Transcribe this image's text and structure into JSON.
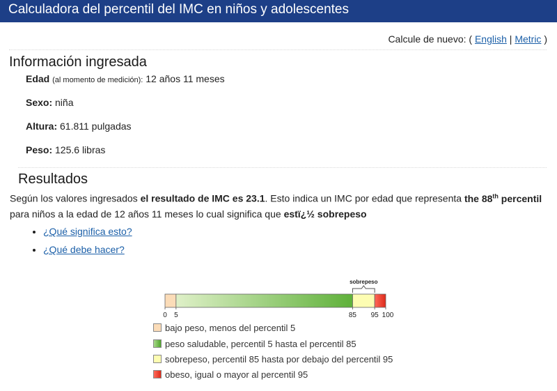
{
  "header": {
    "title": "Calculadora del percentil del IMC en niños y adolescentes"
  },
  "recalc": {
    "label": "Calcule de nuevo: (",
    "english": "English",
    "sep": "|",
    "metric": "Metric",
    "close": ")"
  },
  "info": {
    "heading": "Información ingresada",
    "age_label": "Edad",
    "age_note": "(al momento de medición):",
    "age_value": "12 años 11 meses",
    "sex_label": "Sexo:",
    "sex_value": "niña",
    "height_label": "Altura:",
    "height_value": "61.811 pulgadas",
    "weight_label": "Peso:",
    "weight_value": "125.6 libras"
  },
  "results": {
    "heading": "Resultados",
    "p1": "Según los valores ingresados ",
    "p1_bold": "el resultado de IMC es 23.1",
    "p2": ". Esto indica un IMC por edad que representa ",
    "p2_bold_a": "the 88",
    "p2_sup": "th",
    "p2_bold_b": " percentil",
    "p3": "para niños a la edad de 12 años 11 meses lo cual significa que ",
    "p3_bold": "estï¿½ sobrepeso",
    "links": [
      "¿Qué significa esto?",
      "¿Qué debe hacer?"
    ]
  },
  "chart_data": {
    "type": "bar",
    "bracket_label": "sobrepeso",
    "ticks": [
      "0",
      "5",
      "85",
      "95",
      "100"
    ],
    "segments": [
      {
        "name": "bajo peso",
        "from": 0,
        "to": 5,
        "color": "#fbdcb8"
      },
      {
        "name": "peso saludable",
        "from": 5,
        "to": 85,
        "color": "#63b33e"
      },
      {
        "name": "sobrepeso",
        "from": 85,
        "to": 95,
        "color": "#fdfdb2"
      },
      {
        "name": "obeso",
        "from": 95,
        "to": 100,
        "color": "#e53b2c"
      }
    ],
    "legend": [
      {
        "text": "bajo peso, menos del percentil 5",
        "color": "#fbdcb8"
      },
      {
        "text": "peso saludable, percentil 5 hasta el percentil 85",
        "color": "#63b33e"
      },
      {
        "text": "sobrepeso, percentil 85 hasta por debajo del percentil 95",
        "color": "#fdfdb2"
      },
      {
        "text": "obeso, igual o mayor al percentil 95",
        "color": "#e53b2c"
      }
    ]
  }
}
